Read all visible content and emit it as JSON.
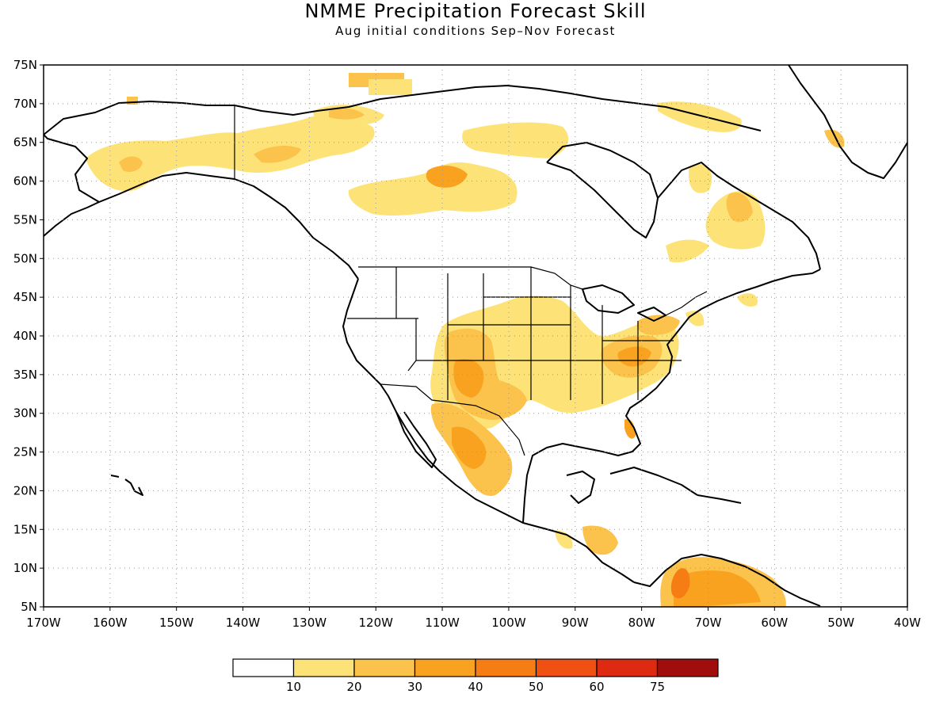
{
  "title": "NMME Precipitation Forecast Skill",
  "subtitle": "Aug initial conditions  Sep–Nov Forecast",
  "map": {
    "lon_range": [
      -170,
      -40
    ],
    "lat_range": [
      5,
      75
    ],
    "lon_ticks": [
      {
        "value": -170,
        "label": "170W"
      },
      {
        "value": -160,
        "label": "160W"
      },
      {
        "value": -150,
        "label": "150W"
      },
      {
        "value": -140,
        "label": "140W"
      },
      {
        "value": -130,
        "label": "130W"
      },
      {
        "value": -120,
        "label": "120W"
      },
      {
        "value": -110,
        "label": "110W"
      },
      {
        "value": -100,
        "label": "100W"
      },
      {
        "value": -90,
        "label": "90W"
      },
      {
        "value": -80,
        "label": "80W"
      },
      {
        "value": -70,
        "label": "70W"
      },
      {
        "value": -60,
        "label": "60W"
      },
      {
        "value": -50,
        "label": "50W"
      },
      {
        "value": -40,
        "label": "40W"
      }
    ],
    "lat_ticks": [
      {
        "value": 75,
        "label": "75N"
      },
      {
        "value": 70,
        "label": "70N"
      },
      {
        "value": 65,
        "label": "65N"
      },
      {
        "value": 60,
        "label": "60N"
      },
      {
        "value": 55,
        "label": "55N"
      },
      {
        "value": 50,
        "label": "50N"
      },
      {
        "value": 45,
        "label": "45N"
      },
      {
        "value": 40,
        "label": "40N"
      },
      {
        "value": 35,
        "label": "35N"
      },
      {
        "value": 30,
        "label": "30N"
      },
      {
        "value": 25,
        "label": "25N"
      },
      {
        "value": 20,
        "label": "20N"
      },
      {
        "value": 15,
        "label": "15N"
      },
      {
        "value": 10,
        "label": "10N"
      },
      {
        "value": 5,
        "label": "5N"
      }
    ],
    "gridlines": "dotted"
  },
  "colorbar": {
    "colors": [
      "#ffffff",
      "#fde377",
      "#fbc24c",
      "#f9a21f",
      "#f67d13",
      "#f05112",
      "#de2a10",
      "#a00d0a"
    ],
    "labels": [
      "10",
      "20",
      "30",
      "40",
      "50",
      "60",
      "75"
    ]
  },
  "palette": {
    "c20": "#fde377",
    "c30": "#fbc24c",
    "c40": "#f9a21f",
    "c50": "#f67d13",
    "c60": "#f05112"
  }
}
